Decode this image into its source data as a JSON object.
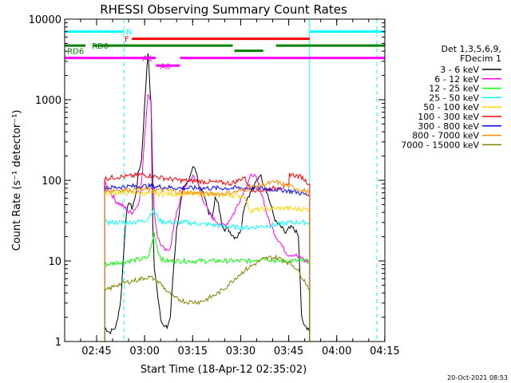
{
  "chart_data": {
    "type": "line",
    "title": "RHESSI Observing Summary Count Rates",
    "xlabel": "Start Time (18-Apr-12 02:35:02)",
    "ylabel": "Count Rate (s⁻¹ detector⁻¹)",
    "yscale": "log",
    "ylim": [
      1,
      10000
    ],
    "xlim_minutes_after_start": [
      0,
      100
    ],
    "grid": false,
    "legend_position": "right",
    "x_ticks": [
      {
        "minute": 9.97,
        "label": "02:45"
      },
      {
        "minute": 24.97,
        "label": "03:00"
      },
      {
        "minute": 39.97,
        "label": "03:15"
      },
      {
        "minute": 54.97,
        "label": "03:30"
      },
      {
        "minute": 69.97,
        "label": "03:45"
      },
      {
        "minute": 84.97,
        "label": "04:00"
      },
      {
        "minute": 99.97,
        "label": "04:15"
      }
    ],
    "y_ticks": [
      {
        "value": 1,
        "label": "1"
      },
      {
        "value": 10,
        "label": "10"
      },
      {
        "value": 100,
        "label": "100"
      },
      {
        "value": 1000,
        "label": "1000"
      },
      {
        "value": 10000,
        "label": "10000"
      }
    ],
    "legend_header": [
      "Det 1,3,5,6,9,",
      "FDecim 1"
    ],
    "data_gap_minutes": [
      [
        0,
        12.5
      ],
      [
        76.5,
        100
      ]
    ],
    "series": [
      {
        "name": "3 - 6 keV",
        "color": "#000000",
        "x": [
          12.5,
          14,
          16,
          17.5,
          19,
          20,
          21,
          22,
          23,
          24,
          25,
          26,
          27,
          27.5,
          28,
          29,
          30,
          31,
          32,
          33,
          34,
          35,
          36,
          37,
          38,
          39,
          40,
          41,
          42,
          43,
          44,
          45,
          46,
          47,
          48,
          49,
          50,
          51,
          52,
          53,
          54,
          55,
          56,
          57,
          58,
          59,
          60,
          61,
          62,
          63,
          64,
          65,
          66,
          67,
          68,
          69,
          70,
          71,
          72,
          73,
          74,
          75,
          76,
          76.5
        ],
        "y": [
          1.5,
          1.3,
          1.5,
          3.2,
          30,
          55,
          45,
          60,
          120,
          180,
          900,
          4000,
          800,
          30,
          8,
          4,
          2,
          1.5,
          1.5,
          2,
          8,
          25,
          45,
          75,
          90,
          110,
          150,
          130,
          85,
          75,
          55,
          40,
          35,
          60,
          50,
          30,
          25,
          25,
          22,
          20,
          20,
          25,
          45,
          60,
          70,
          80,
          100,
          120,
          95,
          75,
          55,
          40,
          30,
          28,
          25,
          22,
          25,
          26,
          24,
          20,
          2,
          1.5,
          1.5,
          1.3
        ]
      },
      {
        "name": "6 - 12 keV",
        "color": "#ff00ff",
        "x": [
          12.5,
          14,
          16,
          17.5,
          19,
          20,
          21,
          22,
          23,
          24,
          25,
          26,
          27,
          27.5,
          28,
          29,
          30,
          31,
          32,
          33,
          34,
          35,
          36,
          37,
          38,
          39,
          40,
          41,
          42,
          43,
          44,
          45,
          46,
          47,
          48,
          49,
          50,
          51,
          52,
          53,
          54,
          55,
          56,
          57,
          58,
          59,
          60,
          61,
          62,
          63,
          64,
          65,
          66,
          67,
          68,
          69,
          70,
          71,
          72,
          73,
          74,
          75,
          76,
          76.5
        ],
        "y": [
          95,
          75,
          55,
          50,
          45,
          40,
          40,
          45,
          50,
          90,
          350,
          1200,
          1000,
          120,
          40,
          20,
          16,
          14,
          13,
          15,
          25,
          42,
          55,
          75,
          90,
          95,
          115,
          105,
          80,
          60,
          50,
          40,
          35,
          32,
          30,
          28,
          28,
          30,
          35,
          40,
          50,
          60,
          75,
          90,
          110,
          120,
          100,
          80,
          60,
          40,
          30,
          25,
          20,
          18,
          15,
          13,
          12,
          12,
          12,
          11,
          11,
          10,
          10,
          10
        ]
      },
      {
        "name": "12 - 25 keV",
        "color": "#00ff00",
        "x": [
          12.5,
          16,
          20,
          24,
          26,
          27,
          28,
          29,
          30,
          31,
          34,
          38,
          42,
          46,
          50,
          54,
          58,
          62,
          66,
          70,
          74,
          76.5
        ],
        "y": [
          9,
          9.5,
          10,
          10.5,
          11,
          15,
          22,
          14,
          11,
          10,
          10,
          10,
          10,
          10,
          10,
          10,
          10,
          11,
          10,
          10,
          10,
          10
        ]
      },
      {
        "name": "25 - 50 keV",
        "color": "#00ffff",
        "x": [
          12.5,
          16,
          20,
          24,
          26,
          27,
          28,
          29,
          30,
          34,
          38,
          42,
          46,
          50,
          54,
          58,
          62,
          66,
          70,
          74,
          76.5
        ],
        "y": [
          30,
          30,
          30,
          31,
          33,
          40,
          42,
          35,
          31,
          30,
          30,
          29,
          28,
          27,
          26,
          26,
          27,
          28,
          30,
          30,
          30
        ]
      },
      {
        "name": "50 - 100 keV",
        "color": "#ffd700",
        "x": [
          12.5,
          16,
          20,
          24,
          28,
          32,
          36,
          40,
          44,
          48,
          52,
          56,
          58,
          60,
          62,
          64,
          66,
          68,
          70,
          72,
          74,
          76.5
        ],
        "y": [
          68,
          70,
          70,
          69,
          68,
          68,
          68,
          68,
          67,
          66,
          65,
          64,
          42,
          43,
          44,
          44,
          45,
          45,
          45,
          44,
          44,
          44
        ]
      },
      {
        "name": "100 - 300 keV",
        "color": "#ff0000",
        "x": [
          12.5,
          16,
          20,
          24,
          28,
          32,
          36,
          40,
          44,
          48,
          52,
          54,
          56,
          58,
          60,
          62,
          64,
          66,
          68,
          70,
          70.2,
          72,
          74,
          76.5
        ],
        "y": [
          105,
          110,
          112,
          118,
          112,
          105,
          100,
          98,
          96,
          94,
          92,
          98,
          110,
          80,
          75,
          75,
          78,
          80,
          82,
          85,
          120,
          115,
          110,
          90
        ]
      },
      {
        "name": "300 - 800 keV",
        "color": "#0000ff",
        "x": [
          12.5,
          16,
          20,
          24,
          28,
          32,
          36,
          40,
          44,
          48,
          52,
          56,
          60,
          64,
          68,
          72,
          76.5
        ],
        "y": [
          80,
          82,
          84,
          85,
          84,
          82,
          80,
          80,
          80,
          80,
          80,
          80,
          80,
          78,
          76,
          72,
          65
        ]
      },
      {
        "name": "800 - 7000 keV",
        "color": "#ff8c00",
        "x": [
          12.5,
          16,
          20,
          24,
          28,
          32,
          36,
          40,
          44,
          48,
          52,
          56,
          60,
          64,
          66,
          68,
          70,
          72,
          74,
          76.5
        ],
        "y": [
          75,
          76,
          76,
          77,
          76,
          75,
          72,
          70,
          68,
          68,
          70,
          76,
          85,
          92,
          95,
          90,
          85,
          80,
          76,
          70
        ]
      },
      {
        "name": "7000 - 15000 keV",
        "color": "#808000",
        "x": [
          12.5,
          16,
          20,
          24,
          26,
          28,
          30,
          32,
          34,
          36,
          38,
          40,
          42,
          44,
          46,
          48,
          50,
          52,
          54,
          56,
          58,
          60,
          62,
          64,
          66,
          68,
          70,
          72,
          74,
          76.5
        ],
        "y": [
          4.2,
          5,
          5.5,
          6,
          6.3,
          6,
          5.2,
          4.2,
          3.5,
          3.3,
          3.1,
          3.1,
          3.1,
          3.3,
          3.6,
          4,
          4.6,
          5.5,
          6.5,
          7.5,
          8.5,
          9.5,
          10.5,
          11,
          11,
          10.5,
          9.5,
          8.5,
          6.5,
          4.5
        ]
      }
    ],
    "annotations": [
      {
        "label": "N",
        "color": "#00ffff",
        "segments": [
          [
            0,
            18.5
          ],
          [
            76.5,
            100
          ]
        ],
        "level": 7000,
        "label_at_minute": 19.2
      },
      {
        "label": "F",
        "color": "#ff0000",
        "segments": [
          [
            21,
            76.5
          ]
        ],
        "level": 5700,
        "label_at_minute": 18.7
      },
      {
        "label": "RD0",
        "color": "#008000",
        "segments": [
          [
            0,
            6.5
          ],
          [
            9,
            52.5
          ],
          [
            66,
            100
          ]
        ],
        "level": 4700,
        "label_at_minute": 8.5
      },
      {
        "label": "RD6",
        "color": "#008000",
        "segments": [
          [
            53,
            62
          ]
        ],
        "level": 4050,
        "label_at_minute": 0.8
      },
      {
        "label": "A1",
        "color": "#ff00ff",
        "segments": [
          [
            0,
            28.5
          ],
          [
            36,
            100
          ]
        ],
        "level": 3300,
        "label_at_minute": 24.3
      },
      {
        "label": "A0",
        "color": "#ff00ff",
        "segments": [
          [
            28.5,
            36
          ]
        ],
        "level": 2650,
        "label_at_minute": 29.8
      }
    ],
    "vlines": [
      {
        "minute": 0,
        "color": "#00ffff",
        "style": "solid"
      },
      {
        "minute": 18.5,
        "color": "#00ffff",
        "style": "dashed"
      },
      {
        "minute": 76.5,
        "color": "#00ffff",
        "style": "solid"
      },
      {
        "minute": 97.5,
        "color": "#00ffff",
        "style": "dashed"
      }
    ],
    "footer": "20-Oct-2021 08:53"
  }
}
